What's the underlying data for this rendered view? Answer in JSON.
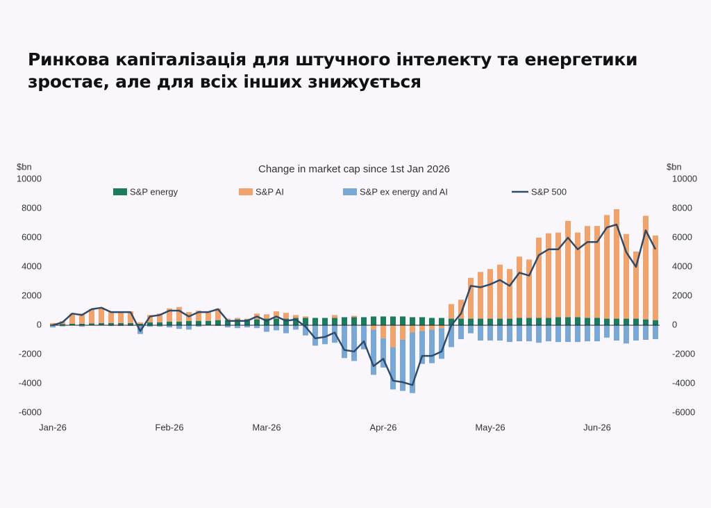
{
  "headline": [
    "Ринкова капіталізація для штучного інтелекту та енергетики",
    "зростає, але для всіх інших знижується"
  ],
  "chart_data": {
    "type": "stacked-bar-line",
    "title": "Change in market cap since 1st Jan 2026",
    "ylabel": "$bn",
    "y2label": "$bn",
    "categories": [
      "Jan-26",
      null,
      null,
      null,
      null,
      null,
      null,
      null,
      null,
      null,
      null,
      null,
      "Feb-26",
      null,
      null,
      null,
      null,
      null,
      null,
      null,
      null,
      null,
      "Mar-26",
      null,
      null,
      null,
      null,
      null,
      null,
      null,
      null,
      null,
      null,
      null,
      "Apr-26",
      null,
      null,
      null,
      null,
      null,
      null,
      null,
      null,
      null,
      null,
      "May-26",
      null,
      null,
      null,
      null,
      null,
      null,
      null,
      null,
      null,
      null,
      "Jun-26",
      null,
      null,
      null,
      null,
      null,
      null
    ],
    "series": [
      {
        "name": "S&P energy",
        "color": "#1b7b5f",
        "kind": "bar",
        "values": [
          50,
          80,
          100,
          100,
          120,
          150,
          150,
          150,
          150,
          100,
          200,
          200,
          250,
          250,
          300,
          300,
          300,
          350,
          350,
          400,
          400,
          400,
          450,
          450,
          450,
          500,
          500,
          500,
          500,
          500,
          550,
          550,
          550,
          600,
          600,
          600,
          600,
          550,
          550,
          500,
          500,
          450,
          450,
          450,
          450,
          450,
          450,
          450,
          500,
          500,
          500,
          500,
          550,
          550,
          550,
          500,
          500,
          450,
          450,
          450,
          450,
          400,
          350
        ]
      },
      {
        "name": "S&P AI",
        "color": "#f0a46c",
        "kind": "bar",
        "values": [
          100,
          200,
          700,
          700,
          900,
          1000,
          800,
          800,
          800,
          100,
          500,
          600,
          900,
          1000,
          600,
          700,
          600,
          800,
          100,
          100,
          50,
          400,
          300,
          500,
          400,
          200,
          100,
          0,
          0,
          200,
          0,
          100,
          0,
          -300,
          -900,
          -1500,
          -1000,
          -500,
          -400,
          -300,
          -200,
          1000,
          1300,
          2800,
          3200,
          3400,
          3700,
          3400,
          4200,
          4000,
          5500,
          5800,
          5800,
          6600,
          5800,
          6300,
          6300,
          7100,
          7500,
          5800,
          4600,
          7100,
          5800
        ]
      },
      {
        "name": "S&P ex energy and AI",
        "color": "#7aa8d5",
        "kind": "bar",
        "values": [
          -150,
          -80,
          0,
          -100,
          80,
          50,
          -50,
          -50,
          -50,
          -600,
          -100,
          -100,
          -150,
          -250,
          -300,
          -100,
          0,
          -50,
          -150,
          -200,
          -150,
          -200,
          -450,
          -350,
          -550,
          -300,
          -700,
          -1400,
          -1300,
          -1200,
          -2250,
          -2450,
          -1650,
          -3100,
          -2000,
          -2900,
          -3500,
          -4150,
          -2250,
          -2300,
          -2100,
          -1500,
          -950,
          -550,
          -1050,
          -1050,
          -1050,
          -1150,
          -1100,
          -1100,
          -1200,
          -1100,
          -1150,
          -1150,
          -1150,
          -1100,
          -1100,
          -850,
          -1050,
          -1250,
          -1050,
          -1000,
          -950
        ]
      },
      {
        "name": "S&P 500",
        "color": "#2e4a6a",
        "kind": "line",
        "values": [
          0,
          200,
          800,
          700,
          1100,
          1200,
          900,
          900,
          900,
          -400,
          600,
          700,
          1000,
          1000,
          600,
          900,
          900,
          1100,
          300,
          300,
          300,
          600,
          300,
          600,
          300,
          400,
          -100,
          -900,
          -800,
          -500,
          -1700,
          -1800,
          -1100,
          -2800,
          -2300,
          -3800,
          -3900,
          -4100,
          -2100,
          -2100,
          -1800,
          0,
          800,
          2700,
          2600,
          2800,
          3100,
          2700,
          3600,
          3400,
          4800,
          5200,
          5200,
          6000,
          5200,
          5700,
          5700,
          6700,
          6900,
          5000,
          4000,
          6500,
          5200
        ]
      }
    ],
    "ylim": [
      -6000,
      10000
    ],
    "yticks": [
      -6000,
      -4000,
      -2000,
      0,
      2000,
      4000,
      6000,
      8000,
      10000
    ],
    "y2lim": [
      -6000,
      10000
    ],
    "y2ticks": [
      -6000,
      -4000,
      -2000,
      0,
      2000,
      4000,
      6000,
      8000,
      10000
    ]
  }
}
